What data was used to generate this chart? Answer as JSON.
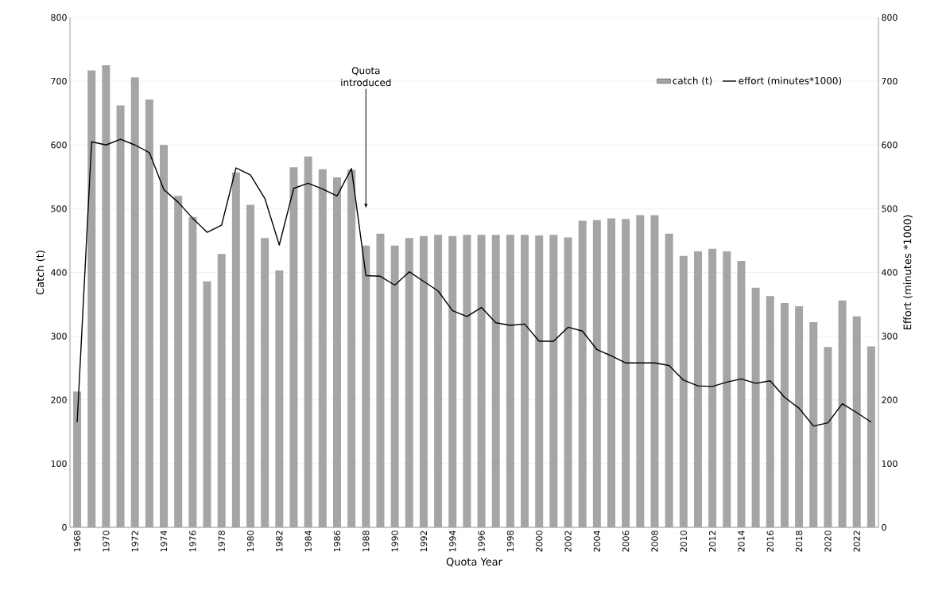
{
  "chart_data": {
    "type": "bar",
    "xlabel": "Quota Year",
    "ylabel": "Catch (t)",
    "y2label": "Effort (minutes *1000)",
    "x": [
      1968,
      1969,
      1970,
      1971,
      1972,
      1973,
      1974,
      1975,
      1976,
      1977,
      1978,
      1979,
      1980,
      1981,
      1982,
      1983,
      1984,
      1985,
      1986,
      1987,
      1988,
      1989,
      1990,
      1991,
      1992,
      1993,
      1994,
      1995,
      1996,
      1997,
      1998,
      1999,
      2000,
      2001,
      2002,
      2003,
      2004,
      2005,
      2006,
      2007,
      2008,
      2009,
      2010,
      2011,
      2012,
      2013,
      2014,
      2015,
      2016,
      2017,
      2018,
      2019,
      2020,
      2021,
      2022,
      2023
    ],
    "series": [
      {
        "name": "catch (t)",
        "color": "#a5a5a5",
        "values": [
          213,
          717,
          725,
          662,
          706,
          671,
          600,
          520,
          487,
          386,
          429,
          557,
          506,
          454,
          403,
          565,
          582,
          562,
          549,
          561,
          442,
          461,
          442,
          454,
          457,
          459,
          457,
          459,
          459,
          459,
          459,
          459,
          458,
          459,
          455,
          481,
          482,
          485,
          484,
          490,
          490,
          461,
          426,
          433,
          437,
          433,
          418,
          376,
          363,
          352,
          347,
          322,
          283,
          356,
          331,
          284
        ]
      },
      {
        "name": "effort (minutes*1000)",
        "type": "line",
        "axis": "y2",
        "color": "#000000",
        "values": [
          165,
          605,
          600,
          609,
          600,
          588,
          530,
          510,
          485,
          463,
          474,
          564,
          553,
          516,
          443,
          532,
          540,
          531,
          520,
          563,
          395,
          394,
          380,
          401,
          386,
          371,
          340,
          331,
          345,
          321,
          317,
          319,
          292,
          292,
          314,
          308,
          279,
          269,
          258,
          258,
          258,
          254,
          231,
          222,
          221,
          228,
          233,
          226,
          230,
          204,
          187,
          159,
          164,
          194,
          180,
          165
        ]
      }
    ],
    "xlim": [
      1967.5,
      2023.5
    ],
    "xticks": [
      1968,
      1970,
      1972,
      1974,
      1976,
      1978,
      1980,
      1982,
      1984,
      1986,
      1988,
      1990,
      1992,
      1994,
      1996,
      1998,
      2000,
      2002,
      2004,
      2006,
      2008,
      2010,
      2012,
      2014,
      2016,
      2018,
      2020,
      2022
    ],
    "ylim": [
      0,
      800
    ],
    "yticks": [
      0,
      100,
      200,
      300,
      400,
      500,
      600,
      700,
      800
    ],
    "y2lim": [
      0,
      800
    ],
    "y2ticks": [
      0,
      100,
      200,
      300,
      400,
      500,
      600,
      700,
      800
    ],
    "grid": "y",
    "legend": "top right",
    "marker": "none",
    "line_style": "solid",
    "annotations": [
      {
        "text": "Quota introduced",
        "x": 1988
      }
    ]
  }
}
